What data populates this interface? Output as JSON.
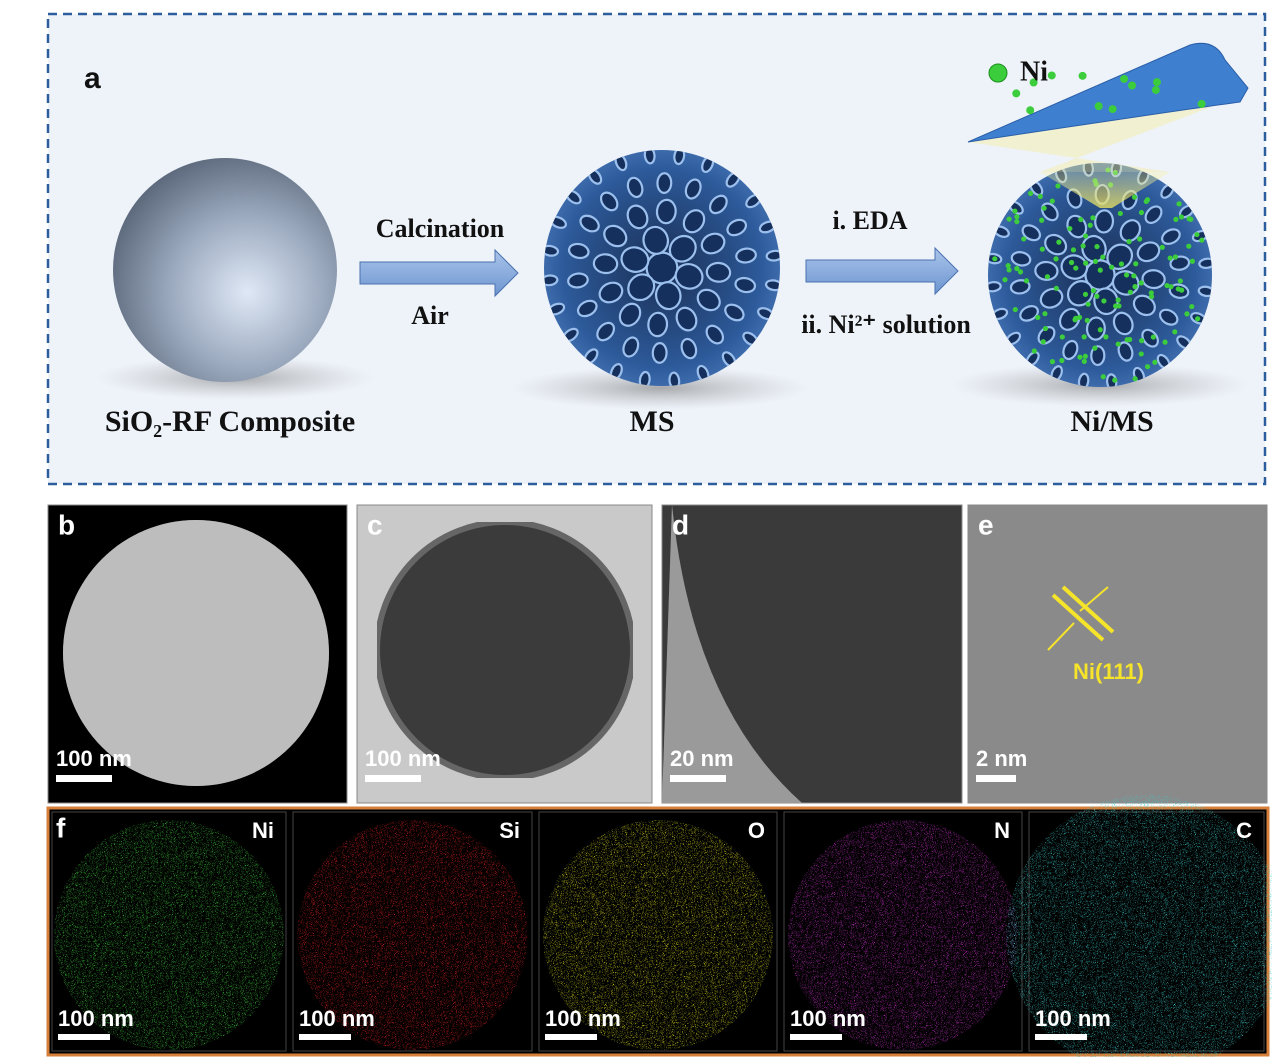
{
  "schematic": {
    "label": "a",
    "legend": "Ni",
    "steps": [
      {
        "top": "Calcination",
        "bottom": "Air"
      },
      {
        "top": "i. EDA",
        "bottom": "ii. Ni²⁺ solution"
      }
    ],
    "materials": [
      "SiO₂-RF Composite",
      "MS",
      "Ni/MS"
    ]
  },
  "micrographs": [
    {
      "label": "b",
      "scale_bar": "100 nm"
    },
    {
      "label": "c",
      "scale_bar": "100 nm"
    },
    {
      "label": "d",
      "scale_bar": "20 nm"
    },
    {
      "label": "e",
      "scale_bar": "2 nm",
      "annotation": "Ni(111)"
    }
  ],
  "mapping": {
    "label": "f",
    "maps": [
      {
        "element": "Ni",
        "scale_bar": "100 nm"
      },
      {
        "element": "Si",
        "scale_bar": "100 nm"
      },
      {
        "element": "O",
        "scale_bar": "100 nm"
      },
      {
        "element": "N",
        "scale_bar": "100 nm"
      },
      {
        "element": "C",
        "scale_bar": "100 nm"
      }
    ]
  }
}
